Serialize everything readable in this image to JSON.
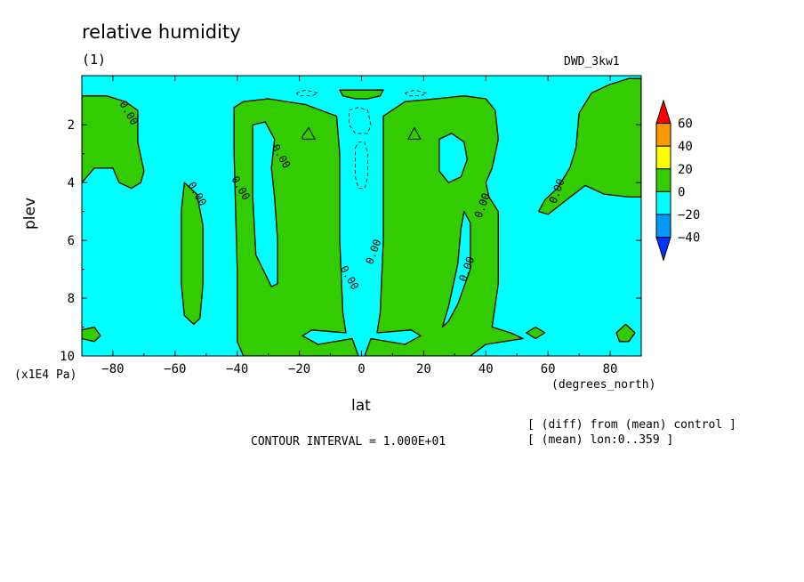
{
  "chart_data": {
    "type": "contour",
    "title": "relative humidity",
    "subtitle": "(1)",
    "run_label": "DWD_3kw1",
    "xlabel": "lat",
    "x_units": "(degrees_north)",
    "ylabel": "plev",
    "y_units": "(x1E4 Pa)",
    "xlim": [
      -90,
      90
    ],
    "ylim": [
      10,
      0.3
    ],
    "x_ticks": [
      -80,
      -60,
      -40,
      -20,
      0,
      20,
      40,
      60,
      80
    ],
    "y_ticks": [
      2,
      4,
      6,
      8,
      10
    ],
    "contour_interval_label": "CONTOUR INTERVAL = 1.000E+01",
    "notes": [
      "[ (diff) from (mean) control ]",
      "[ (mean) lon:0..359 ]"
    ],
    "contour_label": "0.00",
    "contour_label_positions": [
      {
        "lat": -75,
        "plev": 1.6
      },
      {
        "lat": -53,
        "plev": 4.4
      },
      {
        "lat": -39,
        "plev": 4.2
      },
      {
        "lat": -26,
        "plev": 3.1
      },
      {
        "lat": -4,
        "plev": 7.3
      },
      {
        "lat": 4,
        "plev": 6.4
      },
      {
        "lat": 34,
        "plev": 7.0
      },
      {
        "lat": 39,
        "plev": 4.8
      },
      {
        "lat": 63,
        "plev": 4.3
      }
    ],
    "colorbar": {
      "levels": [
        "60",
        "40",
        "20",
        "0",
        "-20",
        "-40"
      ],
      "colors": [
        "#ff0000",
        "#ff9900",
        "#ffff00",
        "#33cc00",
        "#00ffff",
        "#0099ff",
        "#0033ff"
      ]
    },
    "regions": [
      {
        "fill": "positive",
        "color": "#33cc00",
        "points": [
          [
            -90,
            1.0
          ],
          [
            -82,
            1.0
          ],
          [
            -76,
            1.2
          ],
          [
            -72,
            1.5
          ],
          [
            -72,
            2.6
          ],
          [
            -70,
            3.6
          ],
          [
            -71,
            4.0
          ],
          [
            -74,
            4.2
          ],
          [
            -78,
            4.0
          ],
          [
            -80,
            3.5
          ],
          [
            -86,
            3.5
          ],
          [
            -90,
            4.0
          ]
        ]
      },
      {
        "fill": "positive",
        "color": "#33cc00",
        "points": [
          [
            -57,
            4.0
          ],
          [
            -53,
            4.4
          ],
          [
            -51,
            5.5
          ],
          [
            -51,
            7.5
          ],
          [
            -52,
            8.7
          ],
          [
            -54,
            8.9
          ],
          [
            -57,
            8.6
          ],
          [
            -58,
            7.5
          ],
          [
            -58,
            5.0
          ]
        ]
      },
      {
        "fill": "positive",
        "color": "#33cc00",
        "points": [
          [
            -90,
            9.1
          ],
          [
            -86,
            9.0
          ],
          [
            -84,
            9.3
          ],
          [
            -86,
            9.5
          ],
          [
            -90,
            9.4
          ]
        ]
      },
      {
        "fill": "positive",
        "color": "#33cc00",
        "points": [
          [
            -41,
            1.4
          ],
          [
            -38,
            1.2
          ],
          [
            -30,
            1.1
          ],
          [
            -18,
            1.3
          ],
          [
            -8,
            1.7
          ],
          [
            -7,
            3.0
          ],
          [
            -7,
            6.0
          ],
          [
            -6,
            8.5
          ],
          [
            -5,
            9.2
          ],
          [
            -16,
            9.1
          ],
          [
            -19,
            9.3
          ],
          [
            -14,
            9.6
          ],
          [
            -3,
            9.4
          ],
          [
            -1,
            10
          ],
          [
            -38,
            10
          ],
          [
            -40,
            9.5
          ],
          [
            -40,
            7.0
          ],
          [
            -41,
            3.0
          ]
        ]
      },
      {
        "fill": "positive",
        "color": "#33cc00",
        "points": [
          [
            7,
            1.7
          ],
          [
            14,
            1.2
          ],
          [
            24,
            1.1
          ],
          [
            33,
            1.0
          ],
          [
            40,
            1.1
          ],
          [
            43,
            1.5
          ],
          [
            44,
            2.5
          ],
          [
            42,
            3.5
          ],
          [
            40,
            4.0
          ],
          [
            41,
            4.5
          ],
          [
            44,
            5.0
          ],
          [
            44,
            7.5
          ],
          [
            42,
            9.0
          ],
          [
            48,
            9.2
          ],
          [
            52,
            9.4
          ],
          [
            40,
            9.6
          ],
          [
            35,
            10
          ],
          [
            1,
            10
          ],
          [
            3,
            9.4
          ],
          [
            14,
            9.6
          ],
          [
            19,
            9.3
          ],
          [
            16,
            9.1
          ],
          [
            5,
            9.2
          ],
          [
            6,
            8.5
          ],
          [
            7,
            6.0
          ],
          [
            7,
            3.0
          ]
        ]
      },
      {
        "fill": "positive",
        "color": "#33cc00",
        "points": [
          [
            -7,
            0.8
          ],
          [
            7,
            0.8
          ],
          [
            6,
            1.0
          ],
          [
            2,
            1.1
          ],
          [
            -2,
            1.1
          ],
          [
            -6,
            1.0
          ]
        ]
      },
      {
        "fill": "positive",
        "color": "#33cc00",
        "points": [
          [
            90,
            0.4
          ],
          [
            86,
            0.4
          ],
          [
            80,
            0.6
          ],
          [
            74,
            0.9
          ],
          [
            70,
            1.6
          ],
          [
            69,
            2.8
          ],
          [
            67,
            3.5
          ],
          [
            63,
            4.2
          ],
          [
            59,
            4.6
          ],
          [
            57,
            5.0
          ],
          [
            60,
            5.1
          ],
          [
            66,
            4.6
          ],
          [
            72,
            4.1
          ],
          [
            78,
            4.4
          ],
          [
            86,
            4.5
          ],
          [
            90,
            4.5
          ]
        ]
      },
      {
        "fill": "positive",
        "color": "#33cc00",
        "points": [
          [
            53,
            9.2
          ],
          [
            56,
            9.0
          ],
          [
            59,
            9.2
          ],
          [
            56,
            9.4
          ]
        ]
      },
      {
        "fill": "positive",
        "color": "#33cc00",
        "points": [
          [
            82,
            9.2
          ],
          [
            85,
            8.9
          ],
          [
            88,
            9.2
          ],
          [
            86,
            9.5
          ],
          [
            83,
            9.5
          ]
        ]
      },
      {
        "fill": "negative",
        "color": "#00ffff",
        "points": [
          [
            -35,
            2.0
          ],
          [
            -31,
            1.9
          ],
          [
            -28,
            2.5
          ],
          [
            -29,
            3.5
          ],
          [
            -28,
            4.5
          ],
          [
            -27,
            6.0
          ],
          [
            -27,
            7.5
          ],
          [
            -29,
            7.6
          ],
          [
            -34,
            6.5
          ],
          [
            -35,
            4.5
          ],
          [
            -35,
            3.0
          ]
        ]
      },
      {
        "fill": "negative",
        "color": "#00ffff",
        "points": [
          [
            25,
            2.5
          ],
          [
            29,
            2.3
          ],
          [
            33,
            2.6
          ],
          [
            34,
            3.2
          ],
          [
            32,
            3.8
          ],
          [
            28,
            4.0
          ],
          [
            25,
            3.6
          ]
        ]
      },
      {
        "fill": "negative",
        "color": "#00ffff",
        "points": [
          [
            33,
            5.0
          ],
          [
            35,
            5.4
          ],
          [
            35,
            7.0
          ],
          [
            31,
            8.2
          ],
          [
            28,
            8.8
          ],
          [
            26,
            9.0
          ],
          [
            28,
            8.3
          ],
          [
            31,
            6.8
          ],
          [
            32,
            5.6
          ]
        ]
      }
    ],
    "small_contours": [
      {
        "style": "solid",
        "points": [
          [
            -19,
            2.4
          ],
          [
            -17,
            2.1
          ],
          [
            -15,
            2.5
          ],
          [
            -19,
            2.5
          ]
        ]
      },
      {
        "style": "solid",
        "points": [
          [
            15,
            2.5
          ],
          [
            17,
            2.1
          ],
          [
            19,
            2.5
          ],
          [
            15,
            2.5
          ]
        ]
      }
    ],
    "dashed_contours": [
      {
        "points": [
          [
            -4,
            1.5
          ],
          [
            -1,
            1.4
          ],
          [
            2,
            1.5
          ],
          [
            3,
            2.0
          ],
          [
            2,
            2.3
          ],
          [
            -2,
            2.3
          ],
          [
            -4,
            2.0
          ],
          [
            -4,
            1.5
          ]
        ]
      },
      {
        "points": [
          [
            -2,
            2.8
          ],
          [
            -1,
            2.6
          ],
          [
            1,
            2.6
          ],
          [
            2,
            3.0
          ],
          [
            2,
            3.8
          ],
          [
            1,
            4.2
          ],
          [
            -1,
            4.2
          ],
          [
            -2,
            3.8
          ],
          [
            -2,
            2.8
          ]
        ]
      },
      {
        "points": [
          [
            -21,
            0.9
          ],
          [
            -18,
            0.8
          ],
          [
            -14,
            0.9
          ],
          [
            -16,
            1.0
          ],
          [
            -20,
            1.0
          ],
          [
            -21,
            0.9
          ]
        ]
      },
      {
        "points": [
          [
            14,
            0.9
          ],
          [
            17,
            0.8
          ],
          [
            21,
            0.9
          ],
          [
            19,
            1.0
          ],
          [
            15,
            1.0
          ],
          [
            14,
            0.9
          ]
        ]
      }
    ]
  }
}
